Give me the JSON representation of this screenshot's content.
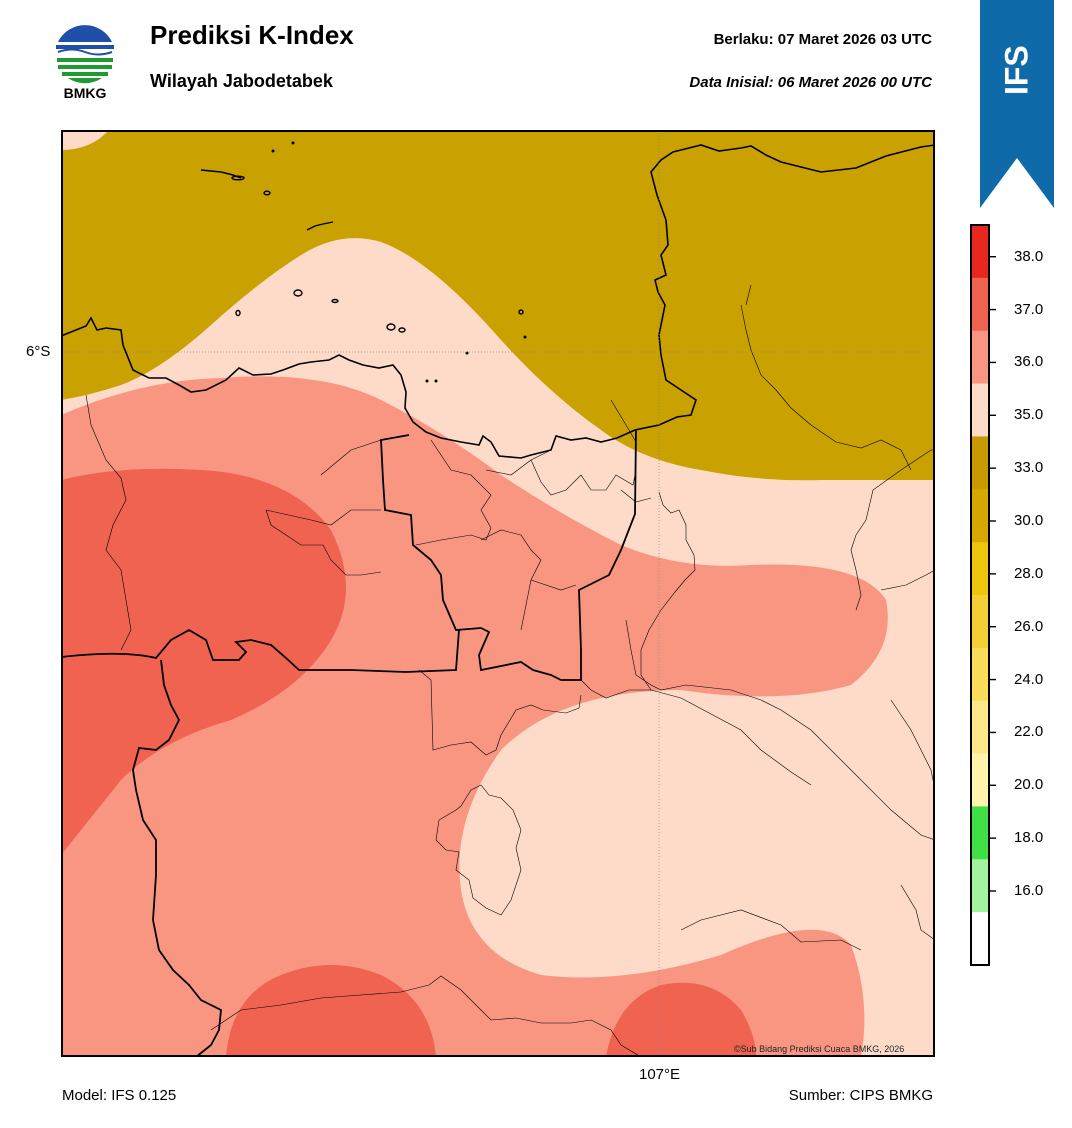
{
  "header": {
    "logo_text": "BMKG",
    "title": "Prediksi K-Index",
    "subtitle": "Wilayah Jabodetabek",
    "valid_label": "Berlaku:  07 Maret 2026 03 UTC",
    "init_label": "Data Inisial:  06 Maret 2026 00 UTC"
  },
  "banner": {
    "text": "IFS",
    "color": "#0e6aa8"
  },
  "map": {
    "lat_label": "6°S",
    "lon_label": "107°E",
    "copyright": "©Sub Bidang Prediksi Cuaca BMKG, 2026",
    "colors": {
      "ki_33_35": "#c9a100",
      "ki_35_36": "#fddbc8",
      "ki_36_37": "#f89682",
      "ki_37_38": "#f06350"
    }
  },
  "footer": {
    "model": "Model: IFS 0.125",
    "source": "Sumber: CIPS BMKG"
  },
  "colorbar": {
    "ticks": [
      "38.0",
      "37.0",
      "36.0",
      "35.0",
      "33.0",
      "30.0",
      "28.0",
      "26.0",
      "24.0",
      "22.0",
      "20.0",
      "18.0",
      "16.0"
    ],
    "colors": [
      "#e8281e",
      "#f06350",
      "#f89682",
      "#fddbc8",
      "#c99a00",
      "#d6a800",
      "#ecc60a",
      "#f3cf35",
      "#fadb5a",
      "#fde889",
      "#fef4ac",
      "#3ee045",
      "#a2f29f",
      "#ffffff"
    ]
  }
}
